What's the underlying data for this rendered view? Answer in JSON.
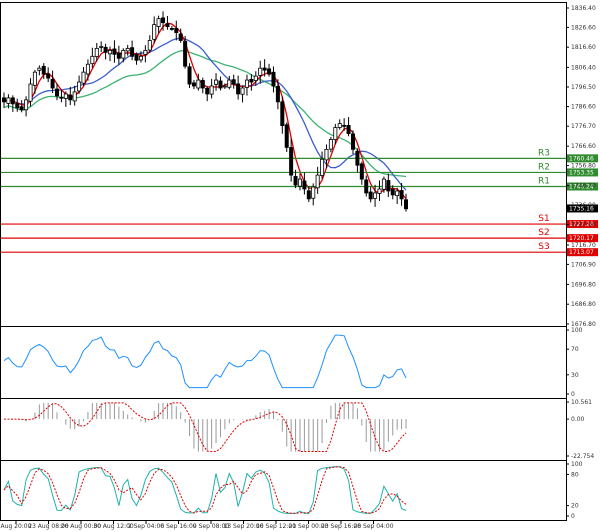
{
  "chart_data": {
    "type": "candlestick",
    "price_axis": {
      "ticks": [
        "1836.40",
        "1826.60",
        "1816.60",
        "1806.40",
        "1796.50",
        "1786.60",
        "1776.70",
        "1766.60",
        "1756.80",
        "1746.70",
        "1736.90",
        "1727.00",
        "1716.70",
        "1706.90",
        "1696.80",
        "1686.80",
        "1676.80"
      ],
      "range": [
        1676.8,
        1836.4
      ]
    },
    "time_axis": {
      "ticks": [
        "Aug 20:00",
        "23 Aug 08:00",
        "26 Aug 00:00",
        "30 Aug 12:00",
        "2 Sep 04:00",
        "6 Sep 16:00",
        "9 Sep 08:00",
        "13 Sep 20:00",
        "16 Sep 12:00",
        "21 Sep 00:00",
        "23 Sep 16:00",
        "28 Sep 04:00"
      ]
    },
    "levels": [
      {
        "label": "R3",
        "value": "1760.46",
        "price": 1760.46,
        "color": "#2e8b2e"
      },
      {
        "label": "R2",
        "value": "1753.35",
        "price": 1753.35,
        "color": "#2e8b2e"
      },
      {
        "label": "R1",
        "value": "1746.24",
        "price": 1746.24,
        "color": "#2e8b2e"
      },
      {
        "label": "S1",
        "value": "1727.28",
        "price": 1727.28,
        "color": "#e00000"
      },
      {
        "label": "S2",
        "value": "1720.17",
        "price": 1720.17,
        "color": "#e00000"
      },
      {
        "label": "S3",
        "value": "1713.07",
        "price": 1713.07,
        "color": "#e00000"
      }
    ],
    "last_price": {
      "value": "1735.16",
      "price": 1735.16
    },
    "closes": [
      1789,
      1791,
      1788,
      1786,
      1785,
      1790,
      1798,
      1804,
      1806,
      1803,
      1801,
      1796,
      1792,
      1791,
      1793,
      1790,
      1794,
      1799,
      1804,
      1808,
      1812,
      1816,
      1817,
      1814,
      1815,
      1813,
      1811,
      1815,
      1816,
      1812,
      1810,
      1812,
      1815,
      1820,
      1828,
      1831,
      1829,
      1827,
      1826,
      1824,
      1820,
      1807,
      1798,
      1797,
      1800,
      1796,
      1793,
      1797,
      1800,
      1796,
      1797,
      1800,
      1798,
      1793,
      1796,
      1800,
      1799,
      1802,
      1806,
      1805,
      1803,
      1797,
      1789,
      1777,
      1766,
      1752,
      1747,
      1750,
      1745,
      1740,
      1746,
      1752,
      1760,
      1765,
      1770,
      1776,
      1778,
      1777,
      1773,
      1765,
      1757,
      1750,
      1743,
      1740,
      1743,
      1745,
      1750,
      1744,
      1742,
      1744,
      1740,
      1735
    ],
    "indicators": [
      {
        "name": "RSI",
        "ticks": [
          "100",
          "70",
          "30",
          "0"
        ],
        "range": [
          0,
          100
        ]
      },
      {
        "name": "MACD",
        "ticks": [
          "10.561",
          "0.00",
          "-22.754"
        ],
        "range": [
          -22.754,
          10.561
        ]
      },
      {
        "name": "Stochastic",
        "ticks": [
          "100",
          "80",
          "20",
          "0"
        ],
        "range": [
          0,
          100
        ]
      }
    ]
  }
}
